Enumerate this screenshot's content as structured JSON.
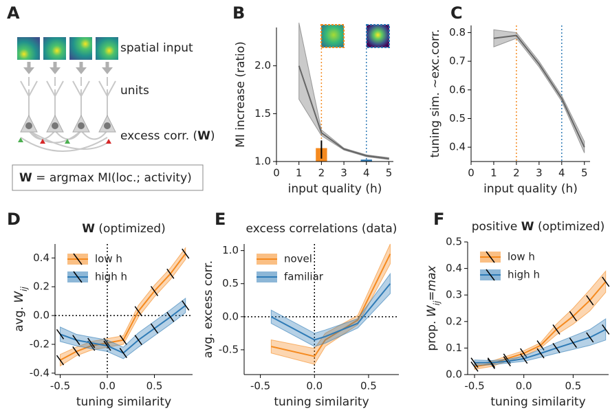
{
  "panel_labels": [
    "A",
    "B",
    "C",
    "D",
    "E",
    "F"
  ],
  "diagram": {
    "input_label": "spatial input",
    "units_label": "units",
    "excess_parts": [
      {
        "text": "excess corr. (",
        "style": "normal"
      },
      {
        "text": "W",
        "style": "bold"
      },
      {
        "text": ")",
        "style": "normal"
      }
    ],
    "formula_parts": [
      {
        "text": "W",
        "style": "bold"
      },
      {
        "text": " = argmax MI(loc.; activity)",
        "style": "normal"
      }
    ]
  },
  "chart_data": [
    {
      "type": "line",
      "xlabel": "input quality (h)",
      "ylabel": [
        {
          "text": "MI increase (ratio)",
          "style": "normal"
        }
      ],
      "x": [
        1,
        2,
        3,
        4,
        5
      ],
      "xlim": [
        0,
        5.2
      ],
      "xticks": [
        0,
        1,
        2,
        3,
        4,
        5
      ],
      "ylim": [
        1.0,
        2.4
      ],
      "yticks": [
        {
          "value": 1.0,
          "label": "1.0"
        },
        1.5,
        {
          "value": 2.0,
          "label": "2.0"
        }
      ],
      "series": [
        {
          "color": "#666666",
          "values": [
            2.0,
            1.3,
            1.13,
            1.06,
            1.03
          ],
          "lower": [
            1.65,
            1.27,
            1.12,
            1.05,
            1.02
          ],
          "upper": [
            2.45,
            1.33,
            1.14,
            1.07,
            1.04
          ]
        }
      ],
      "bars": [
        {
          "x": 2,
          "value": 1.14,
          "error": [
            1.03,
            1.22
          ],
          "color": "#f58a1f"
        },
        {
          "x": 4,
          "value": 1.02,
          "color": "#2f7bb6"
        }
      ],
      "ref_lines": [
        {
          "axis": "x",
          "value": 2,
          "color": "#f58a1f"
        },
        {
          "axis": "x",
          "value": 4,
          "color": "#2f7bb6"
        }
      ]
    },
    {
      "type": "line",
      "xlabel": "input quality (h)",
      "ylabel": [
        {
          "text": "tuning sim. ~exc.corr.",
          "style": "normal"
        }
      ],
      "x": [
        1,
        2,
        3,
        4,
        5
      ],
      "xlim": [
        0,
        5.25
      ],
      "xticks": [
        0,
        1,
        2,
        3,
        4,
        5
      ],
      "ylim": [
        0.35,
        0.825
      ],
      "yticks": [
        0.4,
        0.5,
        0.6,
        0.7,
        0.8
      ],
      "series": [
        {
          "color": "#666666",
          "values": [
            0.78,
            0.79,
            0.69,
            0.57,
            0.4
          ],
          "lower": [
            0.75,
            0.78,
            0.68,
            0.56,
            0.38
          ],
          "upper": [
            0.81,
            0.8,
            0.7,
            0.58,
            0.42
          ]
        }
      ],
      "ref_lines": [
        {
          "axis": "x",
          "value": 2,
          "color": "#f58a1f"
        },
        {
          "axis": "x",
          "value": 4,
          "color": "#2f7bb6"
        }
      ]
    },
    {
      "type": "line",
      "xlabel": "tuning similarity",
      "title": [
        {
          "text": "W",
          "style": "bold"
        },
        {
          "text": " (optimized)",
          "style": "normal"
        }
      ],
      "ylabel": [
        {
          "text": "avg. ",
          "style": "normal"
        },
        {
          "text": "W",
          "style": "italic"
        },
        {
          "text": "ij",
          "style": "sub"
        }
      ],
      "x": [
        -0.5,
        -0.33,
        -0.17,
        0,
        0.17,
        0.33,
        0.5,
        0.67,
        0.83
      ],
      "xlim": [
        -0.555,
        0.905
      ],
      "xticks": [
        -0.5,
        {
          "value": 0,
          "label": "0.0"
        },
        0.5
      ],
      "ylim": [
        -0.41,
        0.497
      ],
      "yticks": [
        -0.4,
        -0.2,
        {
          "value": 0,
          "label": "0.0"
        },
        0.2,
        0.4
      ],
      "legend": "upper left",
      "hatch": true,
      "series": [
        {
          "name": "low h",
          "color": "#f58a1f",
          "values": [
            -0.31,
            -0.25,
            -0.21,
            -0.19,
            -0.17,
            0.03,
            0.17,
            0.29,
            0.43
          ],
          "lower": [
            -0.35,
            -0.28,
            -0.24,
            -0.22,
            -0.2,
            -0.01,
            0.13,
            0.25,
            0.39
          ],
          "upper": [
            -0.27,
            -0.22,
            -0.18,
            -0.16,
            -0.14,
            0.07,
            0.21,
            0.33,
            0.47
          ]
        },
        {
          "name": "high h",
          "color": "#2f7bb6",
          "values": [
            -0.13,
            -0.17,
            -0.19,
            -0.21,
            -0.26,
            -0.17,
            -0.09,
            -0.01,
            0.07
          ],
          "lower": [
            -0.18,
            -0.21,
            -0.23,
            -0.25,
            -0.3,
            -0.22,
            -0.14,
            -0.06,
            0.02
          ],
          "upper": [
            -0.08,
            -0.13,
            -0.15,
            -0.17,
            -0.22,
            -0.12,
            -0.04,
            0.04,
            0.12
          ]
        }
      ],
      "ref_lines": [
        {
          "axis": "x",
          "value": 0,
          "color": "#000000"
        },
        {
          "axis": "y",
          "value": 0,
          "color": "#000000"
        }
      ]
    },
    {
      "type": "line",
      "xlabel": "tuning similarity",
      "title": [
        {
          "text": "excess correlations (data)",
          "style": "normal"
        }
      ],
      "ylabel": [
        {
          "text": "avg. excess corr.",
          "style": "normal"
        }
      ],
      "x": [
        -0.4,
        0,
        0.1,
        0.4,
        0.7
      ],
      "xlim": [
        -0.65,
        0.78
      ],
      "xticks": [
        -0.5,
        {
          "value": 0,
          "label": "0.0"
        },
        0.5
      ],
      "ylim": [
        -0.875,
        1.1
      ],
      "yticks": [
        -0.5,
        {
          "value": 0,
          "label": "0.0"
        },
        0.5,
        {
          "value": 1.0,
          "label": "1.0"
        }
      ],
      "legend": "upper left",
      "series": [
        {
          "name": "novel",
          "color": "#f58a1f",
          "values": [
            -0.45,
            -0.6,
            -0.35,
            -0.05,
            0.95
          ],
          "lower": [
            -0.55,
            -0.72,
            -0.45,
            -0.12,
            0.8
          ],
          "upper": [
            -0.35,
            -0.48,
            -0.25,
            0.02,
            1.1
          ]
        },
        {
          "name": "familiar",
          "color": "#2f7bb6",
          "values": [
            0.0,
            -0.35,
            -0.3,
            -0.1,
            0.5
          ],
          "lower": [
            -0.1,
            -0.45,
            -0.4,
            -0.17,
            0.35
          ],
          "upper": [
            0.1,
            -0.25,
            -0.2,
            -0.03,
            0.65
          ]
        }
      ],
      "ref_lines": [
        {
          "axis": "x",
          "value": 0,
          "color": "#000000"
        },
        {
          "axis": "y",
          "value": 0,
          "color": "#000000"
        }
      ]
    },
    {
      "type": "line",
      "xlabel": "tuning similarity",
      "title": [
        {
          "text": "positive ",
          "style": "normal"
        },
        {
          "text": "W",
          "style": "bold"
        },
        {
          "text": " (optimized)",
          "style": "normal"
        }
      ],
      "ylabel": [
        {
          "text": "prop. ",
          "style": "normal"
        },
        {
          "text": "W",
          "style": "italic"
        },
        {
          "text": "ij",
          "style": "sub"
        },
        {
          "text": "=max",
          "style": "italic"
        }
      ],
      "x": [
        -0.5,
        -0.33,
        -0.17,
        0,
        0.17,
        0.33,
        0.5,
        0.67,
        0.83
      ],
      "xlim": [
        -0.57,
        0.86
      ],
      "xticks": [
        -0.5,
        {
          "value": 0,
          "label": "0.0"
        },
        0.5
      ],
      "ylim": [
        0,
        0.5
      ],
      "yticks": [
        {
          "value": 0,
          "label": "0.0"
        },
        0.1,
        0.2,
        0.3,
        0.4,
        0.5
      ],
      "legend": "upper left",
      "hatch": true,
      "series": [
        {
          "name": "low h",
          "color": "#f58a1f",
          "values": [
            0.03,
            0.04,
            0.06,
            0.08,
            0.11,
            0.17,
            0.22,
            0.28,
            0.35
          ],
          "lower": [
            0.02,
            0.03,
            0.05,
            0.07,
            0.1,
            0.15,
            0.19,
            0.24,
            0.31
          ],
          "upper": [
            0.04,
            0.05,
            0.07,
            0.09,
            0.12,
            0.19,
            0.25,
            0.32,
            0.39
          ]
        },
        {
          "name": "high h",
          "color": "#2f7bb6",
          "values": [
            0.045,
            0.045,
            0.05,
            0.06,
            0.08,
            0.1,
            0.12,
            0.14,
            0.17
          ],
          "lower": [
            0.035,
            0.037,
            0.043,
            0.05,
            0.065,
            0.08,
            0.095,
            0.11,
            0.13
          ],
          "upper": [
            0.055,
            0.053,
            0.057,
            0.07,
            0.095,
            0.12,
            0.145,
            0.17,
            0.21
          ]
        }
      ]
    }
  ]
}
